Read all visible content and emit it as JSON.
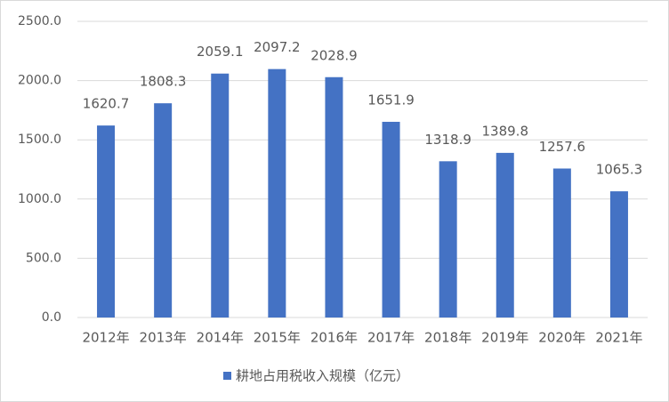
{
  "chart_data": {
    "type": "bar",
    "categories": [
      "2012年",
      "2013年",
      "2014年",
      "2015年",
      "2016年",
      "2017年",
      "2018年",
      "2019年",
      "2020年",
      "2021年"
    ],
    "series": [
      {
        "name": "耕地占用税收入规模（亿元）",
        "color": "#4472c4",
        "values": [
          1620.7,
          1808.3,
          2059.1,
          2097.2,
          2028.9,
          1651.9,
          1318.9,
          1389.8,
          1257.6,
          1065.3
        ]
      }
    ],
    "ylim": [
      0,
      2500
    ],
    "yticks": [
      {
        "value": 0,
        "label": "0.0"
      },
      {
        "value": 500,
        "label": "500.0"
      },
      {
        "value": 1000,
        "label": "1000.0"
      },
      {
        "value": 1500,
        "label": "1500.0"
      },
      {
        "value": 2000,
        "label": "2000.0"
      },
      {
        "value": 2500,
        "label": "2500.0"
      }
    ],
    "grid": true,
    "legend": "bottom"
  }
}
